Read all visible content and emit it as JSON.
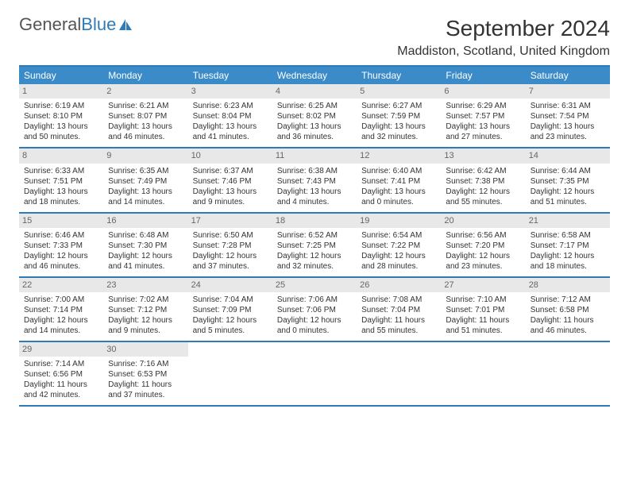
{
  "logo": {
    "part1": "General",
    "part2": "Blue"
  },
  "title": "September 2024",
  "location": "Maddiston, Scotland, United Kingdom",
  "colors": {
    "header_bg": "#3b8bc9",
    "header_text": "#ffffff",
    "border": "#2e7bb8",
    "daynum_bg": "#e8e8e8",
    "daynum_text": "#666666",
    "body_text": "#333333",
    "page_bg": "#ffffff"
  },
  "headers": [
    "Sunday",
    "Monday",
    "Tuesday",
    "Wednesday",
    "Thursday",
    "Friday",
    "Saturday"
  ],
  "weeks": [
    [
      {
        "n": "1",
        "sr": "Sunrise: 6:19 AM",
        "ss": "Sunset: 8:10 PM",
        "dl": "Daylight: 13 hours and 50 minutes."
      },
      {
        "n": "2",
        "sr": "Sunrise: 6:21 AM",
        "ss": "Sunset: 8:07 PM",
        "dl": "Daylight: 13 hours and 46 minutes."
      },
      {
        "n": "3",
        "sr": "Sunrise: 6:23 AM",
        "ss": "Sunset: 8:04 PM",
        "dl": "Daylight: 13 hours and 41 minutes."
      },
      {
        "n": "4",
        "sr": "Sunrise: 6:25 AM",
        "ss": "Sunset: 8:02 PM",
        "dl": "Daylight: 13 hours and 36 minutes."
      },
      {
        "n": "5",
        "sr": "Sunrise: 6:27 AM",
        "ss": "Sunset: 7:59 PM",
        "dl": "Daylight: 13 hours and 32 minutes."
      },
      {
        "n": "6",
        "sr": "Sunrise: 6:29 AM",
        "ss": "Sunset: 7:57 PM",
        "dl": "Daylight: 13 hours and 27 minutes."
      },
      {
        "n": "7",
        "sr": "Sunrise: 6:31 AM",
        "ss": "Sunset: 7:54 PM",
        "dl": "Daylight: 13 hours and 23 minutes."
      }
    ],
    [
      {
        "n": "8",
        "sr": "Sunrise: 6:33 AM",
        "ss": "Sunset: 7:51 PM",
        "dl": "Daylight: 13 hours and 18 minutes."
      },
      {
        "n": "9",
        "sr": "Sunrise: 6:35 AM",
        "ss": "Sunset: 7:49 PM",
        "dl": "Daylight: 13 hours and 14 minutes."
      },
      {
        "n": "10",
        "sr": "Sunrise: 6:37 AM",
        "ss": "Sunset: 7:46 PM",
        "dl": "Daylight: 13 hours and 9 minutes."
      },
      {
        "n": "11",
        "sr": "Sunrise: 6:38 AM",
        "ss": "Sunset: 7:43 PM",
        "dl": "Daylight: 13 hours and 4 minutes."
      },
      {
        "n": "12",
        "sr": "Sunrise: 6:40 AM",
        "ss": "Sunset: 7:41 PM",
        "dl": "Daylight: 13 hours and 0 minutes."
      },
      {
        "n": "13",
        "sr": "Sunrise: 6:42 AM",
        "ss": "Sunset: 7:38 PM",
        "dl": "Daylight: 12 hours and 55 minutes."
      },
      {
        "n": "14",
        "sr": "Sunrise: 6:44 AM",
        "ss": "Sunset: 7:35 PM",
        "dl": "Daylight: 12 hours and 51 minutes."
      }
    ],
    [
      {
        "n": "15",
        "sr": "Sunrise: 6:46 AM",
        "ss": "Sunset: 7:33 PM",
        "dl": "Daylight: 12 hours and 46 minutes."
      },
      {
        "n": "16",
        "sr": "Sunrise: 6:48 AM",
        "ss": "Sunset: 7:30 PM",
        "dl": "Daylight: 12 hours and 41 minutes."
      },
      {
        "n": "17",
        "sr": "Sunrise: 6:50 AM",
        "ss": "Sunset: 7:28 PM",
        "dl": "Daylight: 12 hours and 37 minutes."
      },
      {
        "n": "18",
        "sr": "Sunrise: 6:52 AM",
        "ss": "Sunset: 7:25 PM",
        "dl": "Daylight: 12 hours and 32 minutes."
      },
      {
        "n": "19",
        "sr": "Sunrise: 6:54 AM",
        "ss": "Sunset: 7:22 PM",
        "dl": "Daylight: 12 hours and 28 minutes."
      },
      {
        "n": "20",
        "sr": "Sunrise: 6:56 AM",
        "ss": "Sunset: 7:20 PM",
        "dl": "Daylight: 12 hours and 23 minutes."
      },
      {
        "n": "21",
        "sr": "Sunrise: 6:58 AM",
        "ss": "Sunset: 7:17 PM",
        "dl": "Daylight: 12 hours and 18 minutes."
      }
    ],
    [
      {
        "n": "22",
        "sr": "Sunrise: 7:00 AM",
        "ss": "Sunset: 7:14 PM",
        "dl": "Daylight: 12 hours and 14 minutes."
      },
      {
        "n": "23",
        "sr": "Sunrise: 7:02 AM",
        "ss": "Sunset: 7:12 PM",
        "dl": "Daylight: 12 hours and 9 minutes."
      },
      {
        "n": "24",
        "sr": "Sunrise: 7:04 AM",
        "ss": "Sunset: 7:09 PM",
        "dl": "Daylight: 12 hours and 5 minutes."
      },
      {
        "n": "25",
        "sr": "Sunrise: 7:06 AM",
        "ss": "Sunset: 7:06 PM",
        "dl": "Daylight: 12 hours and 0 minutes."
      },
      {
        "n": "26",
        "sr": "Sunrise: 7:08 AM",
        "ss": "Sunset: 7:04 PM",
        "dl": "Daylight: 11 hours and 55 minutes."
      },
      {
        "n": "27",
        "sr": "Sunrise: 7:10 AM",
        "ss": "Sunset: 7:01 PM",
        "dl": "Daylight: 11 hours and 51 minutes."
      },
      {
        "n": "28",
        "sr": "Sunrise: 7:12 AM",
        "ss": "Sunset: 6:58 PM",
        "dl": "Daylight: 11 hours and 46 minutes."
      }
    ],
    [
      {
        "n": "29",
        "sr": "Sunrise: 7:14 AM",
        "ss": "Sunset: 6:56 PM",
        "dl": "Daylight: 11 hours and 42 minutes."
      },
      {
        "n": "30",
        "sr": "Sunrise: 7:16 AM",
        "ss": "Sunset: 6:53 PM",
        "dl": "Daylight: 11 hours and 37 minutes."
      },
      {
        "empty": true
      },
      {
        "empty": true
      },
      {
        "empty": true
      },
      {
        "empty": true
      },
      {
        "empty": true
      }
    ]
  ]
}
